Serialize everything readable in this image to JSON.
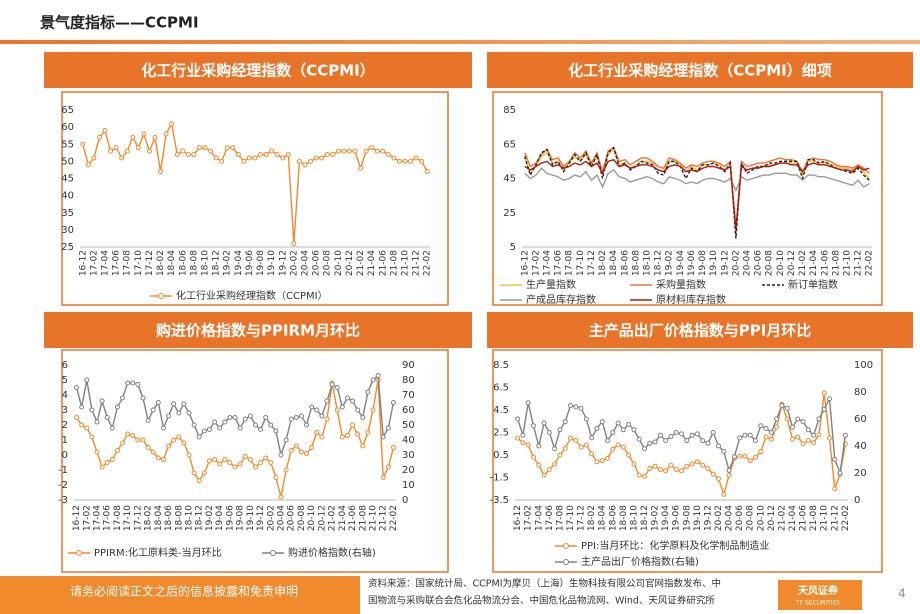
{
  "header": {
    "title": "景气度指标——CCPMI"
  },
  "chart_data": [
    {
      "type": "line",
      "title": "化工行业采购经理指数（CCPMI）",
      "categories": [
        "16-12",
        null,
        "17-02",
        null,
        "17-04",
        null,
        "17-06",
        null,
        "17-08",
        null,
        "17-10",
        null,
        "17-12",
        null,
        "18-02",
        null,
        "18-04",
        null,
        "18-06",
        null,
        "18-08",
        null,
        "18-10",
        null,
        "18-12",
        null,
        "19-02",
        null,
        "19-04",
        null,
        "19-06",
        null,
        "19-08",
        null,
        "19-10",
        null,
        "19-12",
        null,
        "20-02",
        null,
        "20-04",
        null,
        "20-06",
        null,
        "20-08",
        null,
        "20-10",
        null,
        "20-12",
        null,
        "21-02",
        null,
        "21-04",
        null,
        "21-06",
        null,
        "21-08",
        null,
        "21-10",
        null,
        "21-12",
        null,
        "22-02"
      ],
      "ylim": [
        25,
        65
      ],
      "yticks": [
        25,
        30,
        35,
        40,
        45,
        50,
        55,
        60,
        65
      ],
      "series": [
        {
          "name": "化工行业采购经理指数（CCPMI）",
          "color": "#f08a2c",
          "marker": true,
          "values": [
            55,
            49,
            51,
            57,
            59,
            53,
            54,
            51,
            53,
            57,
            54,
            58,
            53,
            57,
            47,
            58,
            61,
            52,
            53,
            52,
            52,
            54,
            54,
            53,
            51,
            50,
            54,
            54,
            52,
            50,
            51,
            51,
            52,
            52,
            53,
            52,
            51,
            52,
            26,
            50,
            49,
            50,
            51,
            51,
            52,
            52,
            53,
            53,
            53,
            53,
            48,
            53,
            54,
            53,
            53,
            52,
            51,
            50,
            50,
            50,
            51,
            50,
            47
          ]
        }
      ]
    },
    {
      "type": "line",
      "title": "化工行业采购经理指数（CCPMI）细项",
      "categories": [
        "16-12",
        null,
        "17-02",
        null,
        "17-04",
        null,
        "17-06",
        null,
        "17-08",
        null,
        "17-10",
        null,
        "17-12",
        null,
        "18-02",
        null,
        "18-04",
        null,
        "18-06",
        null,
        "18-08",
        null,
        "18-10",
        null,
        "18-12",
        null,
        "19-02",
        null,
        "19-04",
        null,
        "19-06",
        null,
        "19-08",
        null,
        "19-10",
        null,
        "19-12",
        null,
        "20-02",
        null,
        "20-04",
        null,
        "20-06",
        null,
        "20-08",
        null,
        "20-10",
        null,
        "20-12",
        null,
        "21-02",
        null,
        "21-04",
        null,
        "21-06",
        null,
        "21-08",
        null,
        "21-10",
        null,
        "21-12",
        null,
        "22-02"
      ],
      "ylim": [
        5,
        85
      ],
      "yticks": [
        5,
        25,
        45,
        65,
        85
      ],
      "series": [
        {
          "name": "生产量指数",
          "color": "#f5c242",
          "values": [
            57,
            48,
            52,
            58,
            60,
            54,
            55,
            50,
            54,
            58,
            55,
            59,
            52,
            58,
            48,
            59,
            62,
            53,
            54,
            51,
            53,
            55,
            55,
            54,
            50,
            49,
            55,
            55,
            53,
            49,
            52,
            50,
            53,
            53,
            54,
            53,
            50,
            53,
            12,
            53,
            50,
            51,
            52,
            52,
            53,
            53,
            54,
            54,
            54,
            54,
            47,
            55,
            55,
            54,
            54,
            53,
            52,
            51,
            51,
            50,
            52,
            49,
            45
          ]
        },
        {
          "name": "采购量指数",
          "color": "#e8743b",
          "values": [
            60,
            52,
            54,
            59,
            62,
            56,
            57,
            52,
            55,
            60,
            57,
            61,
            54,
            60,
            49,
            61,
            63,
            55,
            56,
            53,
            55,
            57,
            57,
            55,
            52,
            51,
            57,
            56,
            54,
            51,
            53,
            52,
            54,
            55,
            55,
            54,
            52,
            55,
            14,
            55,
            52,
            53,
            54,
            54,
            55,
            56,
            57,
            56,
            56,
            55,
            49,
            56,
            57,
            56,
            56,
            55,
            53,
            52,
            52,
            51,
            53,
            51,
            48
          ]
        },
        {
          "name": "新订单指数",
          "color": "#222222",
          "dash": true,
          "values": [
            58,
            47,
            53,
            60,
            62,
            53,
            55,
            49,
            54,
            59,
            55,
            60,
            52,
            59,
            45,
            60,
            63,
            52,
            54,
            50,
            52,
            55,
            54,
            53,
            48,
            47,
            55,
            55,
            52,
            45,
            51,
            49,
            53,
            53,
            54,
            52,
            49,
            54,
            10,
            54,
            48,
            50,
            52,
            52,
            54,
            54,
            55,
            55,
            55,
            55,
            45,
            56,
            56,
            54,
            55,
            53,
            51,
            50,
            49,
            48,
            51,
            47,
            44
          ]
        },
        {
          "name": "产成品库存指数",
          "color": "#9a9a9a",
          "values": [
            48,
            45,
            47,
            51,
            48,
            47,
            46,
            44,
            45,
            47,
            46,
            49,
            44,
            47,
            40,
            48,
            50,
            46,
            45,
            43,
            44,
            45,
            46,
            45,
            43,
            42,
            46,
            45,
            44,
            42,
            43,
            42,
            44,
            45,
            45,
            44,
            43,
            45,
            38,
            46,
            44,
            45,
            46,
            47,
            47,
            48,
            48,
            48,
            47,
            47,
            44,
            47,
            47,
            46,
            46,
            45,
            44,
            43,
            42,
            41,
            44,
            40,
            42
          ]
        },
        {
          "name": "原材料库存指数",
          "color": "#a31d1d",
          "values": [
            52,
            50,
            52,
            54,
            55,
            52,
            53,
            51,
            52,
            54,
            53,
            55,
            52,
            54,
            48,
            55,
            56,
            52,
            53,
            51,
            52,
            53,
            53,
            52,
            50,
            49,
            52,
            53,
            52,
            49,
            50,
            49,
            51,
            52,
            52,
            51,
            50,
            52,
            16,
            52,
            50,
            51,
            51,
            52,
            52,
            53,
            54,
            54,
            53,
            53,
            49,
            53,
            54,
            53,
            53,
            52,
            51,
            50,
            50,
            49,
            52,
            50,
            51
          ]
        }
      ]
    },
    {
      "type": "line",
      "title": "购进价格指数与PPIRM月环比",
      "categories": [
        "16-12",
        null,
        "17-02",
        null,
        "17-04",
        null,
        "17-06",
        null,
        "17-08",
        null,
        "17-10",
        null,
        "17-12",
        null,
        "18-02",
        null,
        "18-04",
        null,
        "18-06",
        null,
        "18-08",
        null,
        "18-10",
        null,
        "18-12",
        null,
        "19-02",
        null,
        "19-04",
        null,
        "19-06",
        null,
        "19-08",
        null,
        "19-10",
        null,
        "19-12",
        null,
        "20-02",
        null,
        "20-04",
        null,
        "20-06",
        null,
        "20-08",
        null,
        "20-10",
        null,
        "20-12",
        null,
        "21-02",
        null,
        "21-04",
        null,
        "21-06",
        null,
        "21-08",
        null,
        "21-10",
        null,
        "21-12",
        null,
        "22-02"
      ],
      "ylim": [
        -3,
        6
      ],
      "yticks": [
        -3,
        -2,
        -1,
        0,
        1,
        2,
        3,
        4,
        5,
        6
      ],
      "y2lim": [
        0,
        90
      ],
      "y2ticks": [
        0,
        10,
        20,
        30,
        40,
        50,
        60,
        70,
        80,
        90
      ],
      "series": [
        {
          "name": "PPIRM:化工原料类-当月环比",
          "color": "#f08a2c",
          "marker": true,
          "values": [
            2.5,
            2.0,
            1.8,
            1.2,
            0.2,
            -0.8,
            -0.5,
            -0.3,
            0.3,
            0.8,
            1.4,
            1.3,
            1.0,
            1.0,
            0.5,
            0.2,
            -0.2,
            -0.3,
            0.6,
            1.0,
            1.2,
            0.8,
            0.0,
            -1.2,
            -1.7,
            -1.2,
            -0.4,
            -0.3,
            -0.6,
            -0.3,
            -0.5,
            -0.8,
            -0.6,
            -0.1,
            -0.3,
            -0.8,
            -0.5,
            -0.2,
            -0.5,
            -1.5,
            -2.8,
            -1.0,
            0.3,
            0.6,
            0.2,
            0.1,
            0.5,
            1.5,
            1.2,
            2.4,
            4.8,
            3.0,
            1.2,
            1.3,
            2.0,
            1.4,
            0.6,
            1.5,
            3.0,
            5.0,
            -1.5,
            -0.8,
            0.5
          ]
        },
        {
          "name": "购进价格指数(右轴)",
          "color": "#808080",
          "marker": true,
          "axis": "y2",
          "values": [
            75,
            62,
            80,
            60,
            52,
            66,
            55,
            48,
            62,
            68,
            78,
            78,
            77,
            68,
            53,
            60,
            65,
            48,
            56,
            64,
            58,
            64,
            58,
            50,
            42,
            46,
            47,
            52,
            48,
            52,
            55,
            55,
            48,
            54,
            56,
            50,
            47,
            55,
            50,
            46,
            30,
            40,
            54,
            55,
            56,
            50,
            62,
            60,
            56,
            66,
            77,
            75,
            62,
            68,
            66,
            60,
            55,
            72,
            80,
            83,
            42,
            48,
            65
          ]
        }
      ]
    },
    {
      "type": "line",
      "title": "主产品出厂价格指数与PPI月环比",
      "categories": [
        "16-12",
        null,
        "17-02",
        null,
        "17-04",
        null,
        "17-06",
        null,
        "17-08",
        null,
        "17-10",
        null,
        "17-12",
        null,
        "18-02",
        null,
        "18-04",
        null,
        "18-06",
        null,
        "18-08",
        null,
        "18-10",
        null,
        "18-12",
        null,
        "19-02",
        null,
        "19-04",
        null,
        "19-06",
        null,
        "19-08",
        null,
        "19-10",
        null,
        "19-12",
        null,
        "20-02",
        null,
        "20-04",
        null,
        "20-06",
        null,
        "20-08",
        null,
        "20-10",
        null,
        "20-12",
        null,
        "21-02",
        null,
        "21-04",
        null,
        "21-06",
        null,
        "21-08",
        null,
        "21-10",
        null,
        "21-12",
        null,
        "22-02"
      ],
      "ylim": [
        -3.5,
        8.5
      ],
      "yticks": [
        -3.5,
        -1.5,
        0.5,
        2.5,
        4.5,
        6.5,
        8.5
      ],
      "y2lim": [
        0,
        100
      ],
      "y2ticks": [
        0,
        20,
        40,
        60,
        80,
        100
      ],
      "series": [
        {
          "name": "PPI:当月环比：化学原料及化学制品制造业",
          "color": "#f08a2c",
          "marker": true,
          "values": [
            2.0,
            1.6,
            1.4,
            0.3,
            -0.4,
            -1.3,
            -0.8,
            -0.3,
            0.5,
            1.1,
            2.0,
            1.8,
            1.2,
            1.4,
            0.6,
            -0.1,
            0.0,
            0.2,
            1.0,
            1.4,
            1.2,
            0.5,
            -0.3,
            -1.3,
            -1.4,
            -0.7,
            -0.5,
            -0.8,
            -0.9,
            -0.4,
            -0.8,
            -0.9,
            -0.5,
            -0.3,
            -0.1,
            -0.4,
            -0.7,
            -1.2,
            -1.6,
            -3.0,
            -1.3,
            0.2,
            0.4,
            0.4,
            0.0,
            0.3,
            0.8,
            2.1,
            1.9,
            3.0,
            5.0,
            3.7,
            1.9,
            2.1,
            1.5,
            1.8,
            1.6,
            2.3,
            6.0,
            2.0,
            -2.5,
            -1.2,
            1.5
          ]
        },
        {
          "name": "主产品出厂价格指数(右轴)",
          "color": "#808080",
          "marker": true,
          "axis": "y2",
          "values": [
            60,
            48,
            72,
            55,
            40,
            57,
            50,
            38,
            52,
            58,
            70,
            69,
            68,
            60,
            46,
            53,
            58,
            44,
            50,
            57,
            52,
            56,
            52,
            45,
            38,
            42,
            43,
            48,
            44,
            47,
            50,
            49,
            44,
            48,
            49,
            44,
            42,
            50,
            40,
            36,
            22,
            32,
            46,
            48,
            48,
            44,
            55,
            53,
            50,
            60,
            70,
            68,
            54,
            60,
            58,
            52,
            48,
            60,
            67,
            75,
            30,
            20,
            48
          ]
        }
      ]
    }
  ],
  "footer": {
    "disclaimer": "请务必阅读正文之后的信息披露和免责申明",
    "source": [
      "资料来源：国家统计局、CCPMI为摩贝（上海）生物科技有限公司官网指数发布、中",
      "国物流与采购联合会危化品物流分会、中国危化品物流网、Wind、天风证券研究所"
    ],
    "logo": "天风证券",
    "logo_sub": "TF SECURITIES",
    "page": "4"
  }
}
